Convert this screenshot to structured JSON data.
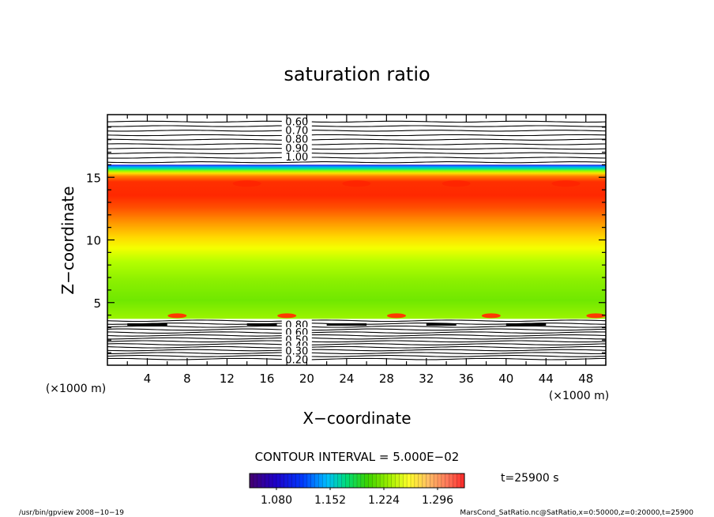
{
  "chart_data": {
    "type": "heatmap",
    "title": "saturation ratio",
    "xlabel": "X−coordinate",
    "ylabel": "Z−coordinate",
    "x_unit_left": "(×1000 m)",
    "x_unit_right": "(×1000 m)",
    "xlim": [
      0,
      50
    ],
    "ylim": [
      0,
      20
    ],
    "x_ticks": [
      4,
      8,
      12,
      16,
      20,
      24,
      28,
      32,
      36,
      40,
      44,
      48
    ],
    "y_ticks": [
      5,
      10,
      15
    ],
    "filled_range": {
      "z_bottom": 3.7,
      "z_top": 16.0,
      "value_min": 1.05,
      "value_max": 1.33
    },
    "upper_contours": {
      "levels": [
        "0.60",
        "0.70",
        "0.80",
        "0.90",
        "1.00"
      ],
      "z_positions": [
        19.4,
        18.7,
        18.0,
        17.3,
        16.6
      ]
    },
    "lower_contours": {
      "levels": [
        "0.80",
        "0.60",
        "0.50",
        "0.40",
        "0.30",
        "0.20"
      ],
      "z_positions": [
        3.2,
        2.6,
        2.0,
        1.5,
        1.1,
        0.4
      ]
    },
    "contour_interval": "CONTOUR INTERVAL = 5.000E−02",
    "colorbar": {
      "labels": [
        "1.080",
        "1.152",
        "1.224",
        "1.296"
      ],
      "range": [
        1.044,
        1.332
      ]
    },
    "time_label": "t=25900 s"
  },
  "footer": {
    "left": "/usr/bin/gpview   2008−10−19",
    "right": "MarsCond_SatRatio.nc@SatRatio,x=0:50000,z=0:20000,t=25900"
  }
}
